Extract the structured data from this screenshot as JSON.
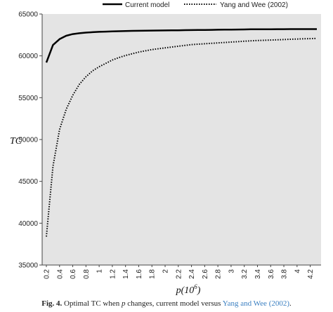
{
  "chart_data": {
    "type": "line",
    "title": "",
    "xlabel": "p(10⁶)",
    "xlabel_base": "p(10",
    "xlabel_exp": "6",
    "xlabel_close": ")",
    "ylabel": "TC",
    "ylim": [
      35000,
      65000
    ],
    "yticks": [
      "35000",
      "40000",
      "45000",
      "50000",
      "55000",
      "60000",
      "65000"
    ],
    "grid": false,
    "plot_background": "#e4e4e4",
    "legend_position": "top",
    "x": [
      0.2,
      0.3,
      0.4,
      0.5,
      0.6,
      0.7,
      0.8,
      0.9,
      1,
      1.1,
      1.2,
      1.3,
      1.4,
      1.5,
      1.6,
      1.7,
      1.8,
      1.9,
      2,
      2.1,
      2.2,
      2.3,
      2.4,
      2.5,
      2.6,
      2.7,
      2.8,
      2.9,
      3,
      3.1,
      3.2,
      3.3,
      3.4,
      3.5,
      3.6,
      3.7,
      3.8,
      3.9,
      4,
      4.1,
      4.2,
      4.3
    ],
    "xticks": [
      "0.2",
      "0.4",
      "0.6",
      "0.8",
      "1",
      "1.2",
      "1.4",
      "1.6",
      "1.8",
      "2",
      "2.2",
      "2.4",
      "2.6",
      "2.8",
      "3",
      "3.2",
      "3.4",
      "3.6",
      "3.8",
      "4",
      "4.2"
    ],
    "series": [
      {
        "name": "Current model",
        "style": "solid",
        "color": "#000000",
        "values": [
          59200,
          61300,
          62000,
          62400,
          62600,
          62700,
          62780,
          62830,
          62870,
          62900,
          62930,
          62950,
          62970,
          62990,
          63000,
          63010,
          63020,
          63030,
          63040,
          63050,
          63060,
          63070,
          63080,
          63090,
          63100,
          63110,
          63120,
          63130,
          63140,
          63150,
          63160,
          63170,
          63170,
          63180,
          63180,
          63190,
          63190,
          63200,
          63200,
          63200,
          63200,
          63200
        ]
      },
      {
        "name": "Yang and Wee (2002)",
        "style": "dotted",
        "color": "#000000",
        "values": [
          38400,
          46800,
          51200,
          53600,
          55300,
          56600,
          57500,
          58200,
          58700,
          59100,
          59500,
          59800,
          60050,
          60250,
          60450,
          60600,
          60750,
          60850,
          60950,
          61050,
          61150,
          61250,
          61350,
          61400,
          61450,
          61500,
          61550,
          61600,
          61650,
          61700,
          61750,
          61800,
          61830,
          61860,
          61890,
          61920,
          61950,
          61980,
          62010,
          62040,
          62060,
          62080
        ]
      }
    ]
  },
  "caption": {
    "label": "Fig. 4.",
    "text_before": "Optimal TC when",
    "variable": "p",
    "text_middle": "changes, current model versus",
    "link": "Yang and Wee (2002)",
    "text_end": "."
  }
}
